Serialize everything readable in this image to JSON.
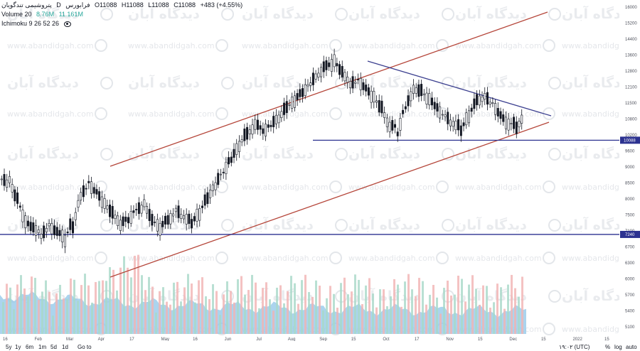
{
  "header": {
    "symbol_name": "پتروشیمی تندگویان",
    "interval": "D",
    "exchange": "فرابورس",
    "open": "O11088",
    "high": "H11088",
    "low": "L11088",
    "close": "C11088",
    "change": "+483 (+4.55%)"
  },
  "volume_legend": {
    "label": "Volume 20",
    "value1": "8.76M",
    "value2": "11.161M"
  },
  "ichimoku_legend": {
    "label": "Ichimoku 9 26 52 26"
  },
  "price_axis": {
    "ticks": [
      "16000",
      "15200",
      "14400",
      "13600",
      "12800",
      "12100",
      "11500",
      "10800",
      "10200",
      "9600",
      "9000",
      "8500",
      "8000",
      "7500",
      "7100",
      "6700",
      "6300",
      "6000",
      "5700",
      "5400",
      "5100"
    ],
    "current_price_tag": "10088",
    "support_price_tag": "7240"
  },
  "time_axis": {
    "ticks": [
      "16",
      "Feb",
      "Mar",
      "Apr",
      "17",
      "May",
      "16",
      "Jun",
      "Jul",
      "Aug",
      "Sep",
      "15",
      "Oct",
      "17",
      "Nov",
      "15",
      "Dec",
      "15",
      "2022",
      "15"
    ]
  },
  "watermark": {
    "fa": "دیدگاه آبان",
    "en": "www.abandidgah.com"
  },
  "toolbar": {
    "timeframes": [
      "5y",
      "1y",
      "6m",
      "1m",
      "5d",
      "1d"
    ],
    "goto_label": "Go to",
    "timezone": "۱۹:۰۲ (UTC)",
    "percent_label": "%",
    "log_label": "log",
    "auto_label": "auto"
  },
  "colors": {
    "channel_line": "#b5463a",
    "resistance_line": "#3b3f8f",
    "horizontal_line": "#2c3290",
    "volume_area": "#8fc6e8",
    "volume_up": "#a8d8c8",
    "volume_down": "#f1b3b3",
    "candle": "#131722"
  },
  "chart_data": {
    "type": "candlestick",
    "price_range": [
      5100,
      16200
    ],
    "horizontal_levels": [
      10088,
      7240
    ],
    "ohlc_close_path": [
      8800,
      8200,
      7600,
      7400,
      7200,
      7500,
      7300,
      7100,
      7400,
      8300,
      8700,
      8400,
      8100,
      7800,
      7500,
      7600,
      7900,
      8100,
      7600,
      7400,
      7600,
      7900,
      7700,
      7500,
      7800,
      8200,
      8600,
      9000,
      9400,
      9900,
      10300,
      10700,
      10400,
      10600,
      10900,
      11300,
      11600,
      11900,
      12300,
      12700,
      13100,
      13400,
      12800,
      12300,
      12500,
      12100,
      11800,
      11300,
      10600,
      10300,
      11300,
      12100,
      12000,
      11700,
      11300,
      11000,
      10700,
      10400,
      11000,
      11600,
      11800,
      11500,
      11000,
      10700,
      10500,
      11088
    ]
  }
}
